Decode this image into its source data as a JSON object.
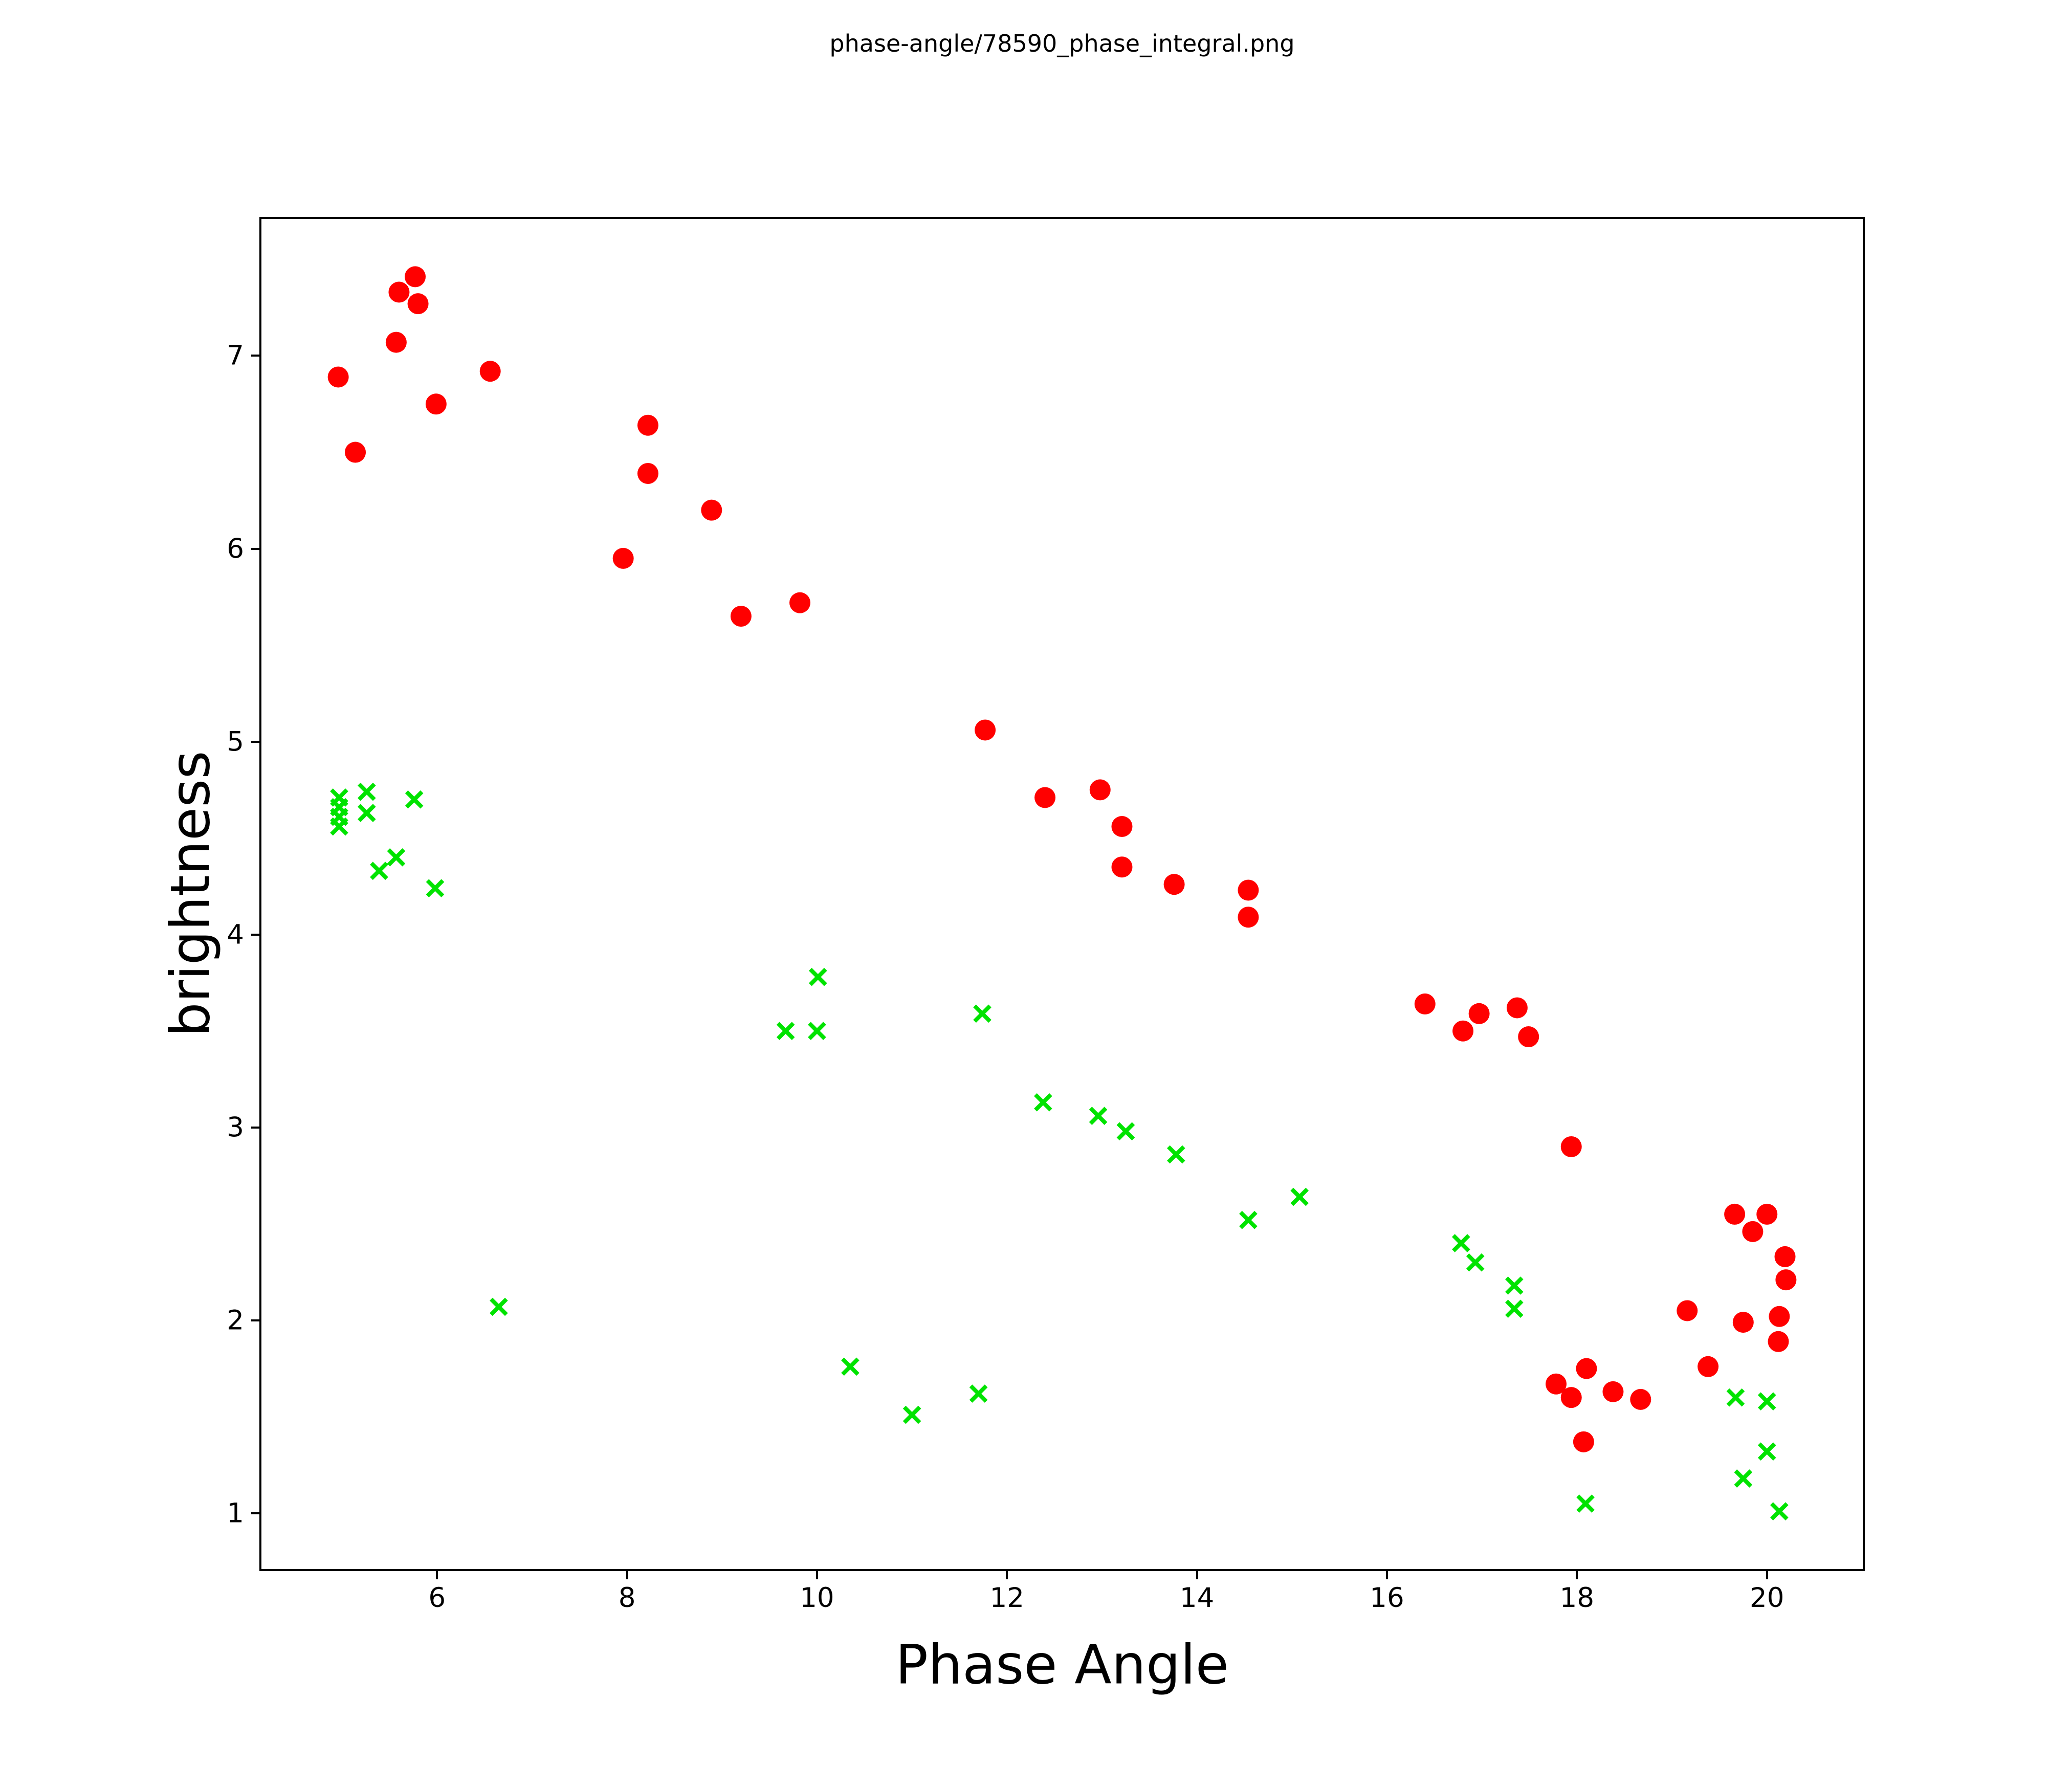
{
  "chart_data": {
    "type": "scatter",
    "title": "phase-angle/78590_phase_integral.png",
    "xlabel": "Phase Angle",
    "ylabel": "brightness",
    "xlim": [
      4.13,
      21.03
    ],
    "ylim": [
      0.7,
      7.72
    ],
    "x_ticks": [
      6,
      8,
      10,
      12,
      14,
      16,
      18,
      20
    ],
    "y_ticks": [
      1,
      2,
      3,
      4,
      5,
      6,
      7
    ],
    "grid": false,
    "legend": false,
    "background_color": "#ffffff",
    "spine_color": "#000000",
    "series": [
      {
        "name": "red-circles",
        "marker": "circle",
        "color": "#ff0000",
        "marker_radius_px": 20.5,
        "points": [
          [
            4.96,
            6.89
          ],
          [
            5.14,
            6.5
          ],
          [
            5.57,
            7.07
          ],
          [
            5.6,
            7.33
          ],
          [
            5.77,
            7.41
          ],
          [
            5.8,
            7.27
          ],
          [
            5.99,
            6.75
          ],
          [
            6.56,
            6.92
          ],
          [
            7.96,
            5.95
          ],
          [
            8.22,
            6.64
          ],
          [
            8.22,
            6.39
          ],
          [
            8.89,
            6.2
          ],
          [
            9.2,
            5.65
          ],
          [
            9.82,
            5.72
          ],
          [
            11.77,
            5.06
          ],
          [
            12.4,
            4.71
          ],
          [
            12.98,
            4.75
          ],
          [
            13.21,
            4.56
          ],
          [
            13.21,
            4.35
          ],
          [
            13.76,
            4.26
          ],
          [
            14.54,
            4.23
          ],
          [
            14.54,
            4.09
          ],
          [
            16.4,
            3.64
          ],
          [
            16.8,
            3.5
          ],
          [
            16.97,
            3.59
          ],
          [
            17.37,
            3.62
          ],
          [
            17.49,
            3.47
          ],
          [
            17.94,
            2.9
          ],
          [
            17.78,
            1.67
          ],
          [
            17.94,
            1.6
          ],
          [
            18.07,
            1.37
          ],
          [
            18.1,
            1.75
          ],
          [
            18.38,
            1.63
          ],
          [
            18.67,
            1.59
          ],
          [
            19.16,
            2.05
          ],
          [
            19.38,
            1.76
          ],
          [
            19.66,
            2.55
          ],
          [
            19.75,
            1.99
          ],
          [
            19.85,
            2.46
          ],
          [
            20.0,
            2.55
          ],
          [
            20.12,
            1.89
          ],
          [
            20.13,
            2.02
          ],
          [
            20.19,
            2.33
          ],
          [
            20.2,
            2.21
          ]
        ]
      },
      {
        "name": "green-crosses",
        "marker": "x",
        "color": "#00e300",
        "marker_half_size_px": 15,
        "marker_stroke_px": 8,
        "points": [
          [
            4.97,
            4.71
          ],
          [
            4.97,
            4.66
          ],
          [
            4.97,
            4.61
          ],
          [
            4.97,
            4.56
          ],
          [
            5.26,
            4.74
          ],
          [
            5.26,
            4.63
          ],
          [
            5.39,
            4.33
          ],
          [
            5.57,
            4.4
          ],
          [
            5.76,
            4.7
          ],
          [
            5.98,
            4.24
          ],
          [
            6.65,
            2.07
          ],
          [
            9.67,
            3.5
          ],
          [
            10.0,
            3.5
          ],
          [
            10.01,
            3.78
          ],
          [
            10.35,
            1.76
          ],
          [
            11.0,
            1.51
          ],
          [
            11.7,
            1.62
          ],
          [
            11.74,
            3.59
          ],
          [
            12.38,
            3.13
          ],
          [
            12.96,
            3.06
          ],
          [
            13.25,
            2.98
          ],
          [
            13.78,
            2.86
          ],
          [
            14.54,
            2.52
          ],
          [
            15.08,
            2.64
          ],
          [
            16.78,
            2.4
          ],
          [
            16.93,
            2.3
          ],
          [
            17.34,
            2.18
          ],
          [
            17.34,
            2.06
          ],
          [
            18.09,
            1.05
          ],
          [
            19.67,
            1.6
          ],
          [
            19.75,
            1.18
          ],
          [
            20.0,
            1.58
          ],
          [
            20.0,
            1.32
          ],
          [
            20.13,
            1.01
          ]
        ]
      }
    ]
  }
}
